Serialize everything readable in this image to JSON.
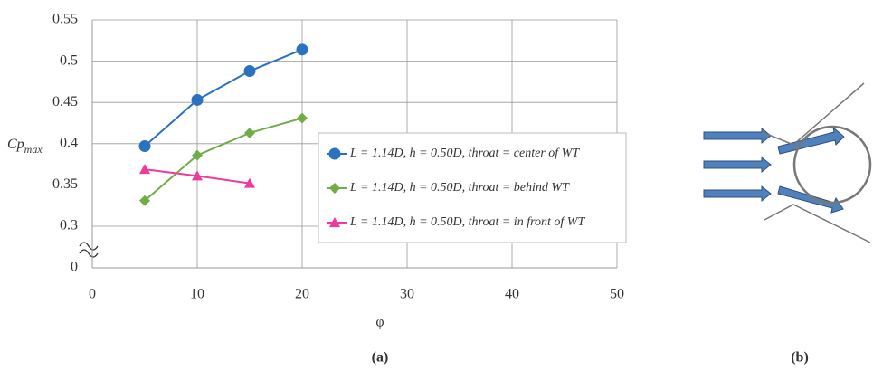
{
  "chart_data": {
    "type": "line",
    "y_label": "Cp",
    "y_label_sub": "max",
    "x_label": "φ",
    "x": [
      5,
      10,
      15,
      20
    ],
    "series": [
      {
        "name": "L = 1.14D,  h = 0.50D,  throat = center of WT",
        "color": "#2a72c0",
        "marker": "circle",
        "values": [
          0.397,
          0.453,
          0.488,
          0.514
        ]
      },
      {
        "name": "L = 1.14D,  h = 0.50D,  throat = behind WT",
        "color": "#70ad47",
        "marker": "diamond",
        "values": [
          0.331,
          0.386,
          0.413,
          0.431
        ]
      },
      {
        "name": "L = 1.14D,  h = 0.50D,  throat = in front of WT",
        "color": "#f0399a",
        "marker": "triangle",
        "values": [
          0.369,
          0.361,
          0.352,
          null
        ]
      }
    ],
    "xlim": [
      0,
      50
    ],
    "xticks": [
      0,
      10,
      20,
      30,
      40,
      50
    ],
    "ylim": [
      0,
      0.55
    ],
    "axis_break": [
      0,
      0.3
    ],
    "yticks": [
      0,
      {
        "value": 0.3,
        "label": "0.3"
      },
      0.35,
      {
        "value": 0.4,
        "label": "0.4"
      },
      0.45,
      {
        "value": 0.5,
        "label": "0.5"
      },
      0.55
    ],
    "grid": true,
    "captions": [
      "(a)",
      "(b)"
    ]
  }
}
